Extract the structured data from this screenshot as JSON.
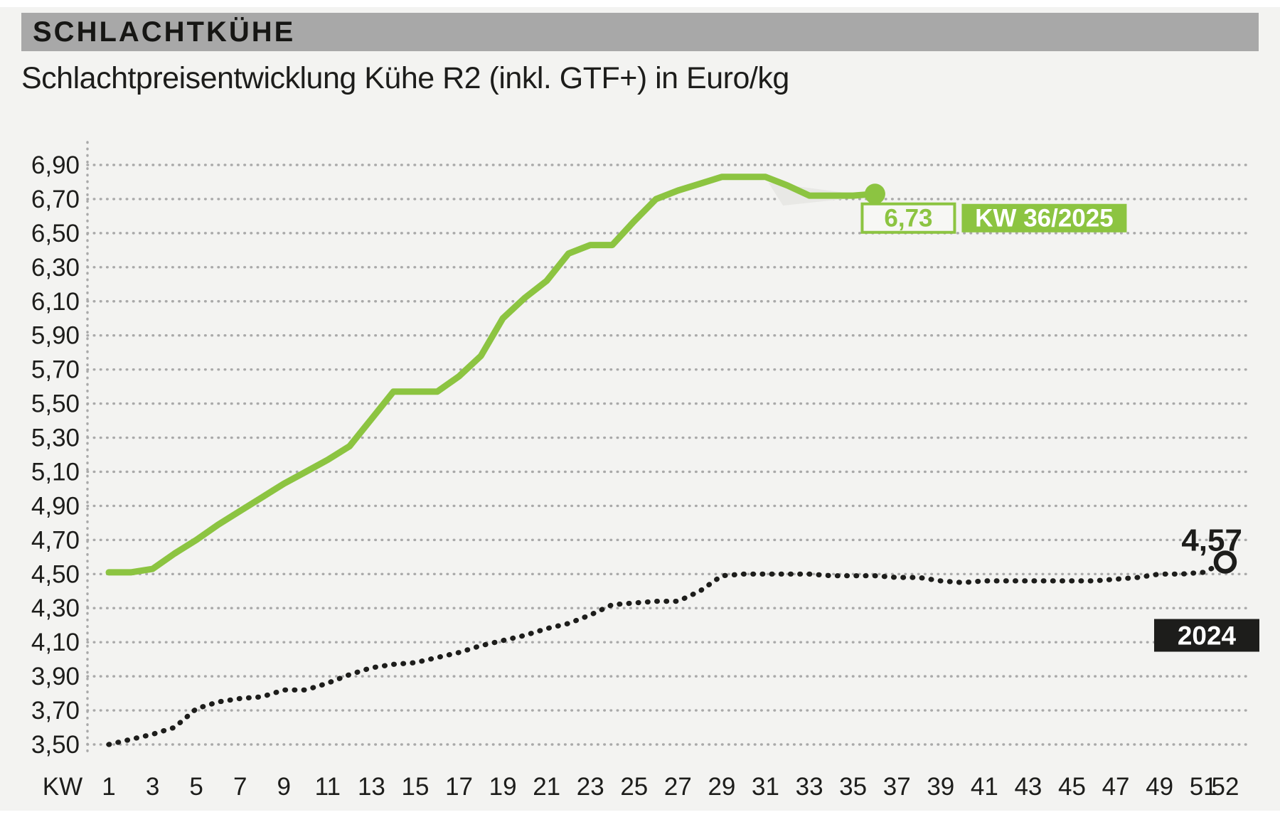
{
  "header": {
    "title": "SCHLACHTKÜHE"
  },
  "subtitle": "Schlachtpreisentwicklung Kühe R2 (inkl. GTF+) in Euro/kg",
  "colors": {
    "background": "#f3f3f1",
    "header_bar": "#a8a8a8",
    "accent_green": "#8cc441",
    "black": "#1d1d1b",
    "grid": "#a9a9a9",
    "shadow_wedge": "#e8e8e5"
  },
  "chart_data": {
    "type": "line",
    "title": "Schlachtpreisentwicklung Kühe R2 (inkl. GTF+) in Euro/kg",
    "unit": "Euro/kg",
    "grid": {
      "horizontal": "dotted",
      "vertical_axis_line": "dotted",
      "color": "#a9a9a9"
    },
    "legend_position": "end-of-line labels",
    "x_axis": {
      "label": "KW",
      "range": [
        1,
        52
      ],
      "tick_labels": [
        "1",
        "3",
        "5",
        "7",
        "9",
        "11",
        "13",
        "15",
        "17",
        "19",
        "21",
        "23",
        "25",
        "27",
        "29",
        "31",
        "33",
        "35",
        "37",
        "39",
        "41",
        "43",
        "45",
        "47",
        "49",
        "51",
        "52"
      ]
    },
    "y_axis": {
      "min": 3.5,
      "max": 6.9,
      "step": 0.2,
      "tick_labels": [
        "3,50",
        "3,70",
        "3,90",
        "4,10",
        "4,30",
        "4,50",
        "4,70",
        "4,90",
        "5,10",
        "5,30",
        "5,50",
        "5,70",
        "5,90",
        "6,10",
        "6,30",
        "6,50",
        "6,70",
        "6,90"
      ]
    },
    "series": [
      {
        "name": "2025",
        "color": "#8cc441",
        "line_style": "solid",
        "start_week": 1,
        "values": [
          4.51,
          4.51,
          4.53,
          4.62,
          4.7,
          4.79,
          4.87,
          4.95,
          5.03,
          5.1,
          5.17,
          5.25,
          5.41,
          5.57,
          5.57,
          5.57,
          5.66,
          5.78,
          6.0,
          6.12,
          6.22,
          6.38,
          6.43,
          6.43,
          6.57,
          6.7,
          6.75,
          6.79,
          6.83,
          6.83,
          6.83,
          6.78,
          6.72,
          6.72,
          6.72,
          6.73
        ],
        "end_marker": "filled-dot",
        "end_value_label": "6,73",
        "end_week_label": "KW 36/2025"
      },
      {
        "name": "2024",
        "color": "#1d1d1b",
        "line_style": "dotted",
        "start_week": 1,
        "values": [
          3.5,
          3.53,
          3.56,
          3.6,
          3.71,
          3.75,
          3.77,
          3.78,
          3.82,
          3.82,
          3.86,
          3.91,
          3.95,
          3.97,
          3.98,
          4.01,
          4.04,
          4.08,
          4.11,
          4.14,
          4.18,
          4.21,
          4.26,
          4.32,
          4.33,
          4.34,
          4.34,
          4.4,
          4.49,
          4.5,
          4.5,
          4.5,
          4.5,
          4.49,
          4.49,
          4.49,
          4.48,
          4.48,
          4.46,
          4.45,
          4.46,
          4.46,
          4.46,
          4.46,
          4.46,
          4.46,
          4.47,
          4.48,
          4.5,
          4.5,
          4.51,
          4.57
        ],
        "end_marker": "open-circle",
        "end_value_label": "4,57",
        "year_badge": "2024"
      }
    ]
  }
}
